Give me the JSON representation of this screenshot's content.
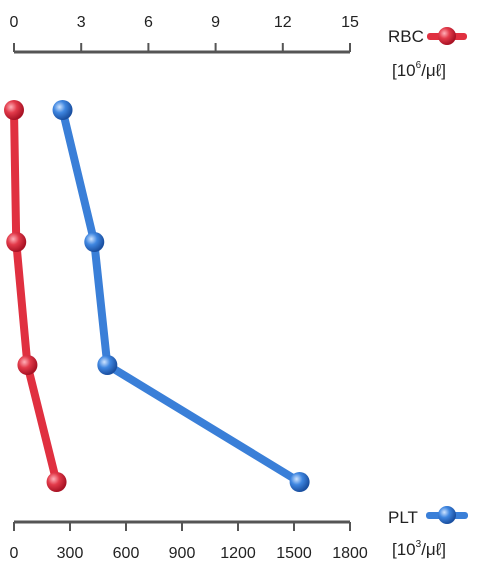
{
  "chart_data": {
    "type": "line",
    "orientation": "vertical-profile",
    "top_axis": {
      "ticks": [
        "0",
        "3",
        "6",
        "9",
        "12",
        "15"
      ],
      "range": [
        0,
        15
      ]
    },
    "bottom_axis": {
      "ticks": [
        "0",
        "300",
        "600",
        "900",
        "1200",
        "1500",
        "1800"
      ],
      "range": [
        0,
        1800
      ]
    },
    "series": [
      {
        "name": "RBC",
        "unit_base": "[10",
        "unit_exp": "6",
        "unit_rest": "/μℓ]",
        "axis": "top",
        "color": "#e03040",
        "values": [
          0,
          0.1,
          0.6,
          1.9
        ]
      },
      {
        "name": "PLT",
        "unit_base": "[10",
        "unit_exp": "3",
        "unit_rest": "/μℓ]",
        "axis": "bottom",
        "color": "#3a7fd8",
        "values": [
          260,
          430,
          500,
          1530
        ]
      }
    ],
    "grid": false
  }
}
